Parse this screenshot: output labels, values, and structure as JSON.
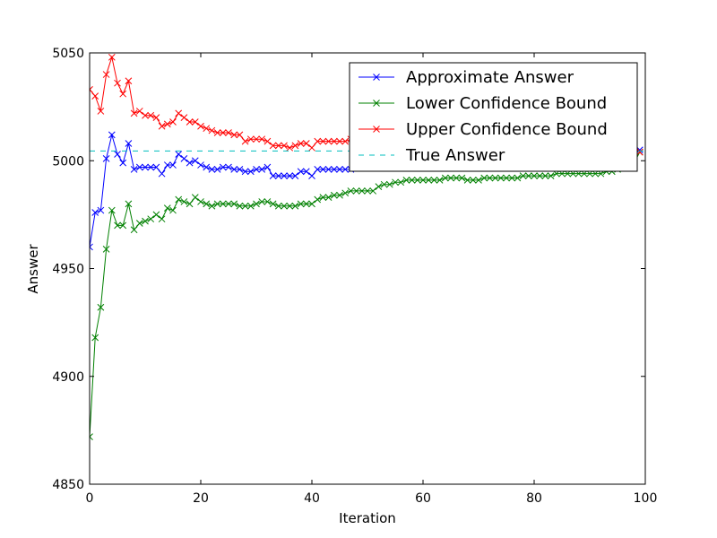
{
  "chart_data": {
    "type": "line",
    "title": "",
    "xlabel": "Iteration",
    "ylabel": "Answer",
    "xlim": [
      0,
      100
    ],
    "ylim": [
      4850,
      5050
    ],
    "xticks": [
      0,
      20,
      40,
      60,
      80,
      100
    ],
    "yticks": [
      4850,
      4900,
      4950,
      5000,
      5050
    ],
    "grid": false,
    "legend_position": "top-right",
    "series": [
      {
        "name": "Approximate Answer",
        "color": "#0000ff",
        "marker": "x",
        "style": "solid",
        "x": [
          0,
          1,
          2,
          3,
          4,
          5,
          6,
          7,
          8,
          9,
          10,
          11,
          12,
          13,
          14,
          15,
          16,
          17,
          18,
          19,
          20,
          21,
          22,
          23,
          24,
          25,
          26,
          27,
          28,
          29,
          30,
          31,
          32,
          33,
          34,
          35,
          36,
          37,
          38,
          39,
          40,
          41,
          42,
          43,
          44,
          45,
          46,
          47,
          48,
          49,
          50,
          60,
          70,
          80,
          90,
          95,
          98,
          99
        ],
        "values": [
          4960,
          4976,
          4977,
          5001,
          5012,
          5003,
          4999,
          5008,
          4996,
          4997,
          4997,
          4997,
          4997,
          4994,
          4998,
          4998,
          5003,
          5001,
          4999,
          5000,
          4998,
          4997,
          4996,
          4996,
          4997,
          4997,
          4996,
          4996,
          4995,
          4995,
          4996,
          4996,
          4997,
          4993,
          4993,
          4993,
          4993,
          4993,
          4995,
          4995,
          4993,
          4996,
          4996,
          4996,
          4996,
          4996,
          4996,
          4996,
          4997,
          4997,
          4998,
          5000,
          5001,
          5002,
          5003,
          5004,
          5004,
          5005
        ]
      },
      {
        "name": "Lower Confidence Bound",
        "color": "#008000",
        "marker": "x",
        "style": "solid",
        "x": [
          0,
          1,
          2,
          3,
          4,
          5,
          6,
          7,
          8,
          9,
          10,
          11,
          12,
          13,
          14,
          15,
          16,
          17,
          18,
          19,
          20,
          21,
          22,
          23,
          24,
          25,
          26,
          27,
          28,
          29,
          30,
          31,
          32,
          33,
          34,
          35,
          36,
          37,
          38,
          39,
          40,
          41,
          42,
          43,
          44,
          45,
          46,
          47,
          48,
          49,
          50,
          51,
          52,
          53,
          54,
          55,
          56,
          57,
          58,
          59,
          60,
          61,
          62,
          63,
          64,
          65,
          66,
          67,
          68,
          69,
          70,
          71,
          72,
          73,
          74,
          75,
          76,
          77,
          78,
          79,
          80,
          81,
          82,
          83,
          84,
          85,
          86,
          87,
          88,
          89,
          90,
          91,
          92,
          93,
          94,
          95,
          96,
          97,
          98,
          99
        ],
        "values": [
          4872,
          4918,
          4932,
          4959,
          4977,
          4970,
          4970,
          4980,
          4968,
          4971,
          4972,
          4973,
          4975,
          4973,
          4978,
          4977,
          4982,
          4981,
          4980,
          4983,
          4981,
          4980,
          4979,
          4980,
          4980,
          4980,
          4980,
          4979,
          4979,
          4979,
          4980,
          4981,
          4981,
          4980,
          4979,
          4979,
          4979,
          4979,
          4980,
          4980,
          4980,
          4982,
          4983,
          4983,
          4984,
          4984,
          4985,
          4986,
          4986,
          4986,
          4986,
          4986,
          4988,
          4989,
          4989,
          4990,
          4990,
          4991,
          4991,
          4991,
          4991,
          4991,
          4991,
          4991,
          4992,
          4992,
          4992,
          4992,
          4991,
          4991,
          4991,
          4992,
          4992,
          4992,
          4992,
          4992,
          4992,
          4992,
          4993,
          4993,
          4993,
          4993,
          4993,
          4993,
          4994,
          4994,
          4994,
          4994,
          4994,
          4994,
          4994,
          4994,
          4994,
          4995,
          4995,
          4996,
          4997,
          4997,
          4999,
          5004
        ]
      },
      {
        "name": "Upper Confidence Bound",
        "color": "#ff0000",
        "marker": "x",
        "style": "solid",
        "x": [
          0,
          1,
          2,
          3,
          4,
          5,
          6,
          7,
          8,
          9,
          10,
          11,
          12,
          13,
          14,
          15,
          16,
          17,
          18,
          19,
          20,
          21,
          22,
          23,
          24,
          25,
          26,
          27,
          28,
          29,
          30,
          31,
          32,
          33,
          34,
          35,
          36,
          37,
          38,
          39,
          40,
          41,
          42,
          43,
          44,
          45,
          46,
          47,
          48,
          49,
          50,
          98,
          99
        ],
        "values": [
          5033,
          5030,
          5023,
          5040,
          5048,
          5036,
          5031,
          5037,
          5022,
          5023,
          5021,
          5021,
          5020,
          5016,
          5017,
          5018,
          5022,
          5020,
          5018,
          5018,
          5016,
          5015,
          5014,
          5013,
          5013,
          5013,
          5012,
          5012,
          5009,
          5010,
          5010,
          5010,
          5009,
          5007,
          5007,
          5007,
          5006,
          5007,
          5008,
          5008,
          5006,
          5009,
          5009,
          5009,
          5009,
          5009,
          5009,
          5010,
          5010,
          5010,
          5011,
          5008,
          5004
        ]
      },
      {
        "name": "True Answer",
        "color": "#00bfbf",
        "marker": "none",
        "style": "dashed",
        "x": [
          0,
          100
        ],
        "values": [
          5004.5,
          5004.5
        ]
      }
    ]
  }
}
